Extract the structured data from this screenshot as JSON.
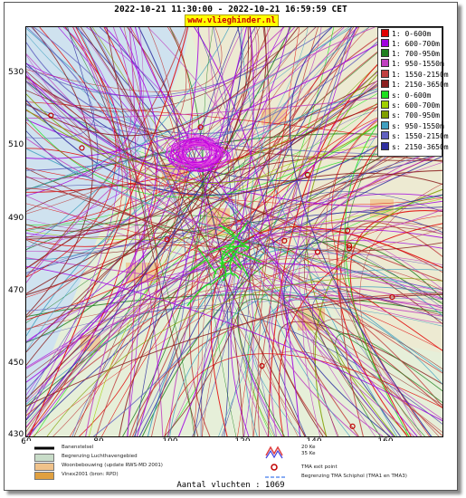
{
  "header": {
    "title": "2022-10-21 11:30:00 - 2022-10-21 16:59:59 CET",
    "site": "www.vliegh​inder.nl"
  },
  "axes": {
    "y_ticks": [
      "530",
      "510",
      "490",
      "470",
      "450",
      "430"
    ],
    "x_ticks": [
      "60",
      "80",
      "100",
      "120",
      "140",
      "160"
    ]
  },
  "legend": [
    {
      "label": "1: 0-600m",
      "color": "#e00000"
    },
    {
      "label": "1: 600-700m",
      "color": "#a000e0"
    },
    {
      "label": "1: 700-950m",
      "color": "#208020"
    },
    {
      "label": "1: 950-1550m",
      "color": "#c040c0"
    },
    {
      "label": "1: 1550-2150m",
      "color": "#c04040"
    },
    {
      "label": "1: 2150-3650m",
      "color": "#8b2020"
    },
    {
      "label": "s: 0-600m",
      "color": "#20e020"
    },
    {
      "label": "s: 600-700m",
      "color": "#a0d000"
    },
    {
      "label": "s: 700-950m",
      "color": "#80a000"
    },
    {
      "label": "s: 950-1550m",
      "color": "#40a0c0"
    },
    {
      "label": "s: 1550-2150m",
      "color": "#6060c0"
    },
    {
      "label": "s: 2150-3650m",
      "color": "#3030a0"
    }
  ],
  "bottom_legend": {
    "banenstelsel": "Banenstelsel",
    "luchthaven": "Begrenzing Luchthavengebied",
    "woonbebouwing": "Woonbebouwing (update RWS-MD 2001)",
    "vinex": "Vinex2001 (bron: RPD)",
    "ke20": "20 Ke",
    "ke35": "35 Ke",
    "tma_exit": "TMA exit point",
    "tma_schiphol": "Begrenzing TMA Schiphol  (TMA1 en TMA3)"
  },
  "footer": {
    "count": "Aantal vluchten : 1069"
  }
}
